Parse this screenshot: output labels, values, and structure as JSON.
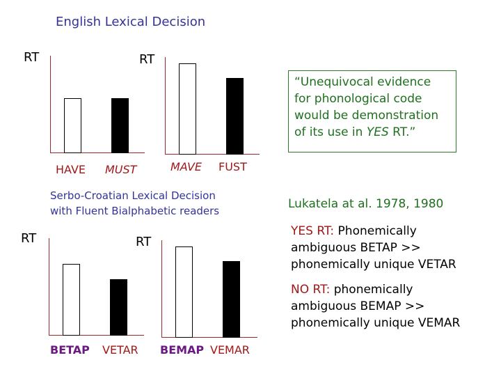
{
  "titles": {
    "english": "English Lexical Decision",
    "serbo_line1": "Serbo-Croatian Lexical Decision",
    "serbo_line2": "with Fluent Bialphabetic readers"
  },
  "quote": {
    "line1": "“Unequivocal evidence",
    "line2": "for phonological code",
    "line3": "would be demonstration",
    "line4_prefix": "of its use in ",
    "line4_italic": "YES",
    "line4_suffix": " RT.”"
  },
  "citation": "Lukatela at al. 1978, 1980",
  "notes": {
    "yes_label": "YES RT:",
    "yes_line1": " Phonemically",
    "yes_line2": "ambiguous BETAP >>",
    "yes_line3": "phonemically unique VETAR",
    "no_label": "NO RT:",
    "no_line1": " phonemically",
    "no_line2": "ambiguous BEMAP >>",
    "no_line3": "phonemically unique VEMAR"
  },
  "colors": {
    "white_bar": "#ffffff",
    "black_bar": "#000000",
    "axis": "#9a2a2a"
  },
  "chart_data": [
    {
      "type": "bar",
      "ylabel": "RT",
      "categories": [
        "HAVE",
        "MUST"
      ],
      "values": [
        79,
        79
      ],
      "fills": [
        "white",
        "black"
      ],
      "ylim": [
        0,
        140
      ],
      "grid": false
    },
    {
      "type": "bar",
      "ylabel": "RT",
      "categories": [
        "MAVE",
        "FUST"
      ],
      "values": [
        131,
        110
      ],
      "fills": [
        "white",
        "black"
      ],
      "ylim": [
        0,
        140
      ],
      "grid": false
    },
    {
      "type": "bar",
      "ylabel": "RT",
      "categories": [
        "BETAP",
        "VETAR"
      ],
      "values": [
        103,
        81
      ],
      "fills": [
        "white",
        "black"
      ],
      "ylim": [
        0,
        140
      ],
      "grid": false
    },
    {
      "type": "bar",
      "ylabel": "RT",
      "categories": [
        "BEMAP",
        "VEMAR"
      ],
      "values": [
        131,
        110
      ],
      "fills": [
        "white",
        "black"
      ],
      "ylim": [
        0,
        140
      ],
      "grid": false
    }
  ]
}
